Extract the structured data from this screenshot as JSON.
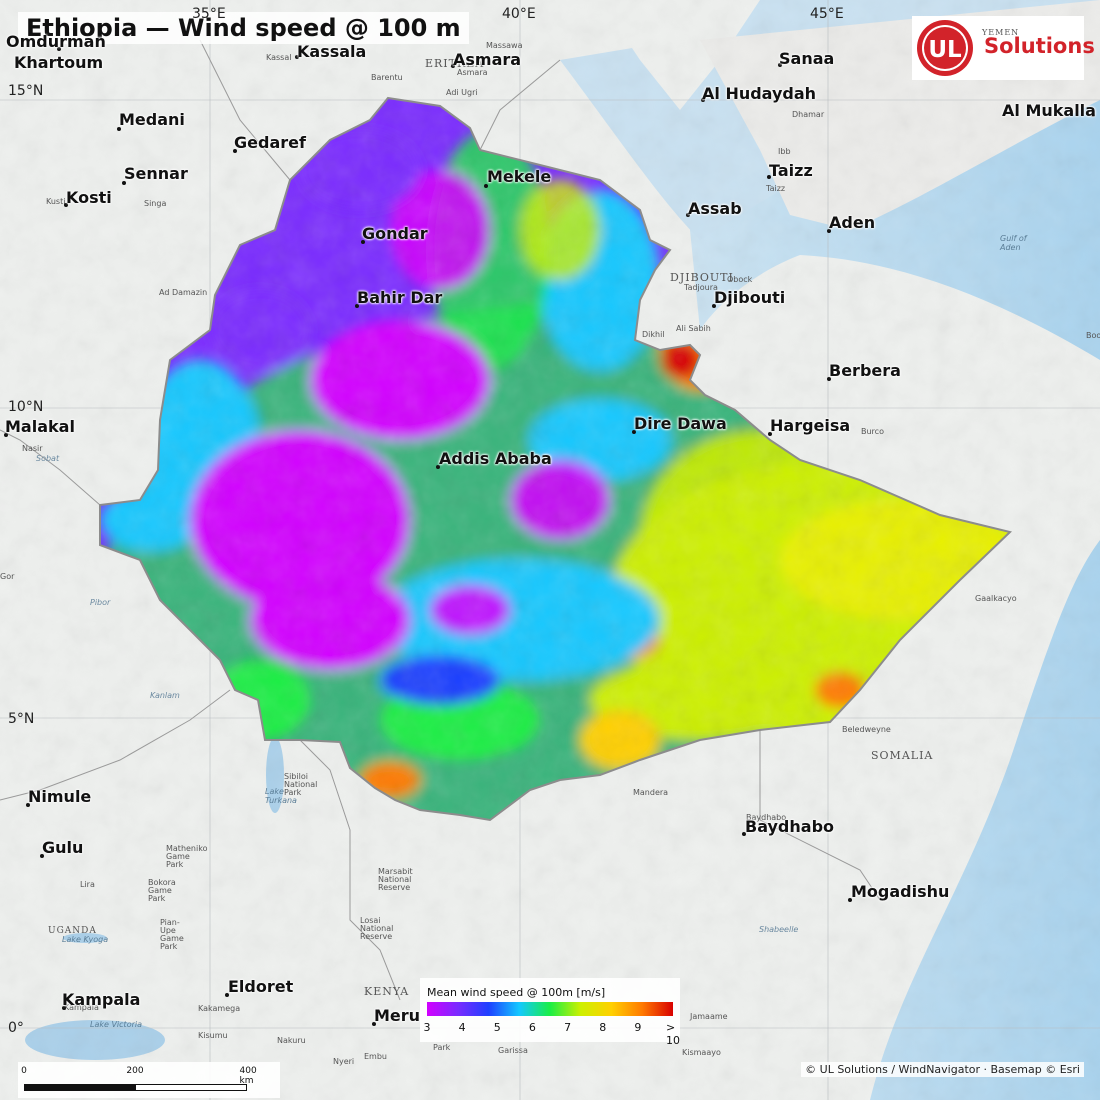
{
  "title": "Ethiopia — Wind speed @ 100 m",
  "logo": {
    "mark": "UL",
    "text": "Solutions",
    "color": "#d2232a"
  },
  "gridlines": {
    "lon": [
      "35°E",
      "40°E",
      "45°E"
    ],
    "lat": [
      "15°N",
      "10°N",
      "5°N",
      "0°"
    ]
  },
  "cities": [
    "Omdurman",
    "Khartoum",
    "Kassala",
    "Asmara",
    "Sanaa",
    "Al Hudaydah",
    "Al Mukalla",
    "Medani",
    "Gedaref",
    "Sennar",
    "Kosti",
    "Mekele",
    "Taizz",
    "Assab",
    "Aden",
    "Gondar",
    "Djibouti",
    "Bahir Dar",
    "Berbera",
    "Malakal",
    "Dire Dawa",
    "Hargeisa",
    "Addis Ababa",
    "Nimule",
    "Baydhabo",
    "Gulu",
    "Mogadishu",
    "Eldoret",
    "Kampala",
    "Meru"
  ],
  "small_places": [
    "Massawa",
    "Kassal",
    "ERIT",
    "Asmara",
    "Barentu",
    "Adi Ugri",
    "Dhamar",
    "Ibb",
    "Taizz",
    "Singa",
    "Kusti",
    "Ad Damazin",
    "Gulf of Aden",
    "Obock",
    "Tadjoura",
    "Dikhil",
    "Ali Sabih",
    "Burco",
    "Boo",
    "Nasir",
    "Sobat",
    "Gaalkacyo",
    "Pibor",
    "Beledweyne",
    "Mandera",
    "Sibiloi National Park",
    "Lake Turkana",
    "Baydhabo",
    "Shabeelle",
    "Jamaame",
    "Kismaayo",
    "Garissa",
    "Embu",
    "Nyeri",
    "Nakuru",
    "Kisumu",
    "Kakamega",
    "Lake Victoria",
    "Kampala",
    "Lake Kyoga",
    "Lira",
    "Bokora Game Park",
    "Matheniko Game Park",
    "Pian-Upe Game Park",
    "Marsabit National Reserve",
    "Losai National Reserve",
    "Kenya",
    "Park",
    "Kanlam",
    "Kotido",
    "Gor"
  ],
  "countries": [
    "ERITREA",
    "DJIBOUTI",
    "YEMEN",
    "SOMALIA",
    "KENYA",
    "UGANDA"
  ],
  "legend": {
    "title": "Mean wind speed @ 100m  [m/s]",
    "ticks": [
      "3",
      "4",
      "5",
      "6",
      "7",
      "8",
      "9",
      "> 10"
    ],
    "colors": [
      "#d200ff",
      "#7a2bff",
      "#1e40ff",
      "#14c8ff",
      "#1aee45",
      "#cdf000",
      "#ffd000",
      "#ff7a00",
      "#d80000"
    ]
  },
  "scalebar": {
    "labels": [
      "0",
      "200",
      "400 km"
    ]
  },
  "attribution": "© UL Solutions / WindNavigator · Basemap © Esri"
}
